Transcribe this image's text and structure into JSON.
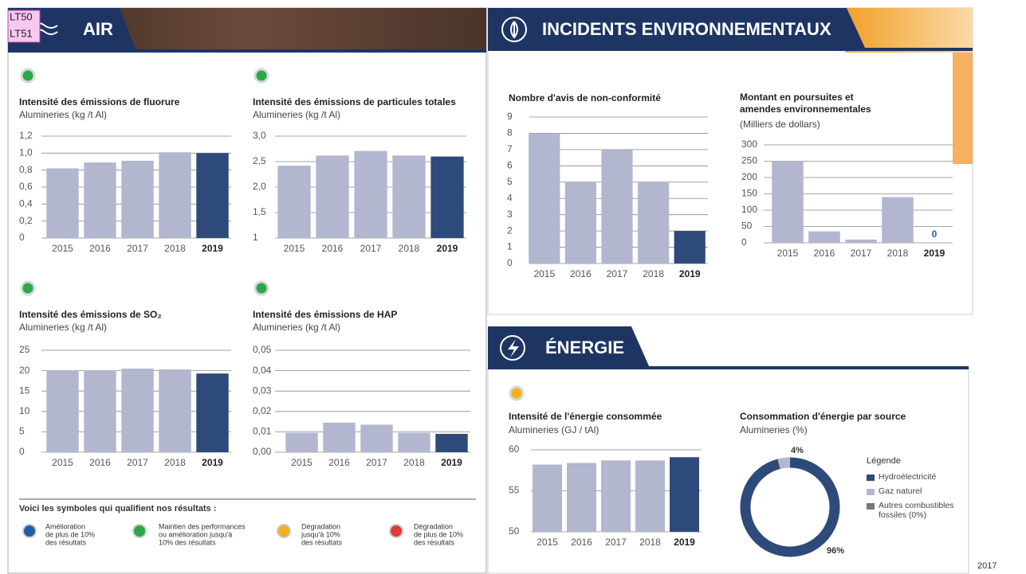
{
  "overlay_labels": [
    "LT50",
    "LT51"
  ],
  "sections": {
    "air": "AIR",
    "incidents": "INCIDENTS ENVIRONNEMENTAUX",
    "energie": "ÉNERGIE"
  },
  "symbols": {
    "title": "Voici les symboles qui qualifient nos résultats :",
    "items": [
      {
        "color": "#1f5fa8",
        "lines": [
          "Amélioration",
          "de plus de 10%",
          "des résultats"
        ]
      },
      {
        "color": "#2aa84a",
        "lines": [
          "Maintien des performances",
          "ou amélioration jusqu'à",
          "10% des résultats"
        ]
      },
      {
        "color": "#f2b21d",
        "lines": [
          "Dégradation",
          "jusqu'à 10%",
          "des résultats"
        ]
      },
      {
        "color": "#e03a3a",
        "lines": [
          "Dégradation",
          "de plus de 10%",
          "des résultats"
        ]
      }
    ]
  },
  "footer": "2017",
  "chart_data": [
    {
      "type": "bar",
      "title": "Intensité des émissions de fluorure",
      "subtitle": "Alumineries (kg /t Al)",
      "status_color": "#2aa84a",
      "categories": [
        "2015",
        "2016",
        "2017",
        "2018",
        "2019"
      ],
      "values": [
        0.82,
        0.89,
        0.91,
        1.01,
        1.0
      ],
      "colors": [
        "#b3b6cf",
        "#b3b6cf",
        "#b3b6cf",
        "#b3b6cf",
        "#2e4a7a"
      ],
      "ylim": [
        0,
        1.2
      ],
      "yticks": [
        0,
        {
          "value": 0.2,
          "label": "0,2"
        },
        {
          "value": 0.4,
          "label": "0,4"
        },
        {
          "value": 0.6,
          "label": "0,6"
        },
        {
          "value": 0.8,
          "label": "0,8"
        },
        {
          "value": 1.0,
          "label": "1,0"
        },
        {
          "value": 1.2,
          "label": "1,2"
        }
      ],
      "grid": true
    },
    {
      "type": "bar",
      "title": "Intensité des émissions de particules totales",
      "subtitle": "Alumineries (kg /t Al)",
      "status_color": "#2aa84a",
      "categories": [
        "2015",
        "2016",
        "2017",
        "2018",
        "2019"
      ],
      "values": [
        2.42,
        2.62,
        2.71,
        2.62,
        2.6
      ],
      "colors": [
        "#b3b6cf",
        "#b3b6cf",
        "#b3b6cf",
        "#b3b6cf",
        "#2e4a7a"
      ],
      "ylim": [
        1,
        3
      ],
      "yticks": [
        1,
        {
          "value": 1.5,
          "label": "1,5"
        },
        {
          "value": 2.0,
          "label": "2,0"
        },
        {
          "value": 2.5,
          "label": "2,5"
        },
        {
          "value": 3.0,
          "label": "3,0"
        }
      ],
      "grid": true
    },
    {
      "type": "bar",
      "title": "Intensité des émissions de SO₂",
      "subtitle": "Alumineries (kg /t Al)",
      "status_color": "#2aa84a",
      "categories": [
        "2015",
        "2016",
        "2017",
        "2018",
        "2019"
      ],
      "values": [
        20.0,
        20.0,
        20.5,
        20.3,
        19.3
      ],
      "colors": [
        "#b3b6cf",
        "#b3b6cf",
        "#b3b6cf",
        "#b3b6cf",
        "#2e4a7a"
      ],
      "ylim": [
        0,
        25
      ],
      "yticks": [
        0,
        5,
        10,
        15,
        20,
        25
      ],
      "grid": true
    },
    {
      "type": "bar",
      "title": "Intensité des émissions de HAP",
      "subtitle": "Alumineries (kg /t Al)",
      "status_color": "#2aa84a",
      "categories": [
        "2015",
        "2016",
        "2017",
        "2018",
        "2019"
      ],
      "values": [
        0.0095,
        0.0145,
        0.0135,
        0.0095,
        0.009
      ],
      "colors": [
        "#b3b6cf",
        "#b3b6cf",
        "#b3b6cf",
        "#b3b6cf",
        "#2e4a7a"
      ],
      "ylim": [
        0,
        0.05
      ],
      "yticks": [
        {
          "value": 0,
          "label": "0,00"
        },
        {
          "value": 0.01,
          "label": "0,01"
        },
        {
          "value": 0.02,
          "label": "0,02"
        },
        {
          "value": 0.03,
          "label": "0,03"
        },
        {
          "value": 0.04,
          "label": "0,04"
        },
        {
          "value": 0.05,
          "label": "0,05"
        }
      ],
      "grid": true
    },
    {
      "type": "bar",
      "title": "Nombre d'avis de non-conformité",
      "categories": [
        "2015",
        "2016",
        "2017",
        "2018",
        "2019"
      ],
      "values": [
        8,
        5,
        7,
        5,
        2
      ],
      "colors": [
        "#b3b6cf",
        "#b3b6cf",
        "#b3b6cf",
        "#b3b6cf",
        "#2e4a7a"
      ],
      "ylim": [
        0,
        9
      ],
      "yticks": [
        0,
        1,
        2,
        3,
        4,
        5,
        6,
        7,
        8,
        9
      ],
      "grid": true
    },
    {
      "type": "bar",
      "title": "Montant en poursuites et amendes environnementales",
      "subtitle": "(Milliers de dollars)",
      "categories": [
        "2015",
        "2016",
        "2017",
        "2018",
        "2019"
      ],
      "values": [
        250,
        35,
        10,
        140,
        0
      ],
      "value_labels": [
        null,
        null,
        null,
        null,
        "0"
      ],
      "colors": [
        "#b3b6cf",
        "#b3b6cf",
        "#b3b6cf",
        "#b3b6cf",
        "#2e4a7a"
      ],
      "ylim": [
        0,
        300
      ],
      "yticks": [
        0,
        50,
        100,
        150,
        200,
        250,
        300
      ],
      "grid": true
    },
    {
      "type": "bar",
      "title": "Intensité de l'énergie consommée",
      "subtitle": "Alumineries (GJ / tAl)",
      "status_color": "#f2b21d",
      "categories": [
        "2015",
        "2016",
        "2017",
        "2018",
        "2019"
      ],
      "values": [
        58.2,
        58.4,
        58.7,
        58.7,
        59.1
      ],
      "colors": [
        "#b3b6cf",
        "#b3b6cf",
        "#b3b6cf",
        "#b3b6cf",
        "#2e4a7a"
      ],
      "ylim": [
        50,
        60
      ],
      "yticks": [
        50,
        55,
        60
      ],
      "grid": true
    },
    {
      "type": "pie",
      "title": "Consommation d'énergie par source",
      "subtitle": "Alumineries (%)",
      "legend_title": "Légende",
      "categories": [
        "Hydroélectricité",
        "Gaz naturel",
        "Autres combustibles fossiles (0%)"
      ],
      "values": [
        96,
        4,
        0
      ],
      "value_labels": [
        "96%",
        "4%",
        null
      ],
      "colors": [
        "#2e4a7a",
        "#b3b6cf",
        "#777777"
      ]
    }
  ]
}
